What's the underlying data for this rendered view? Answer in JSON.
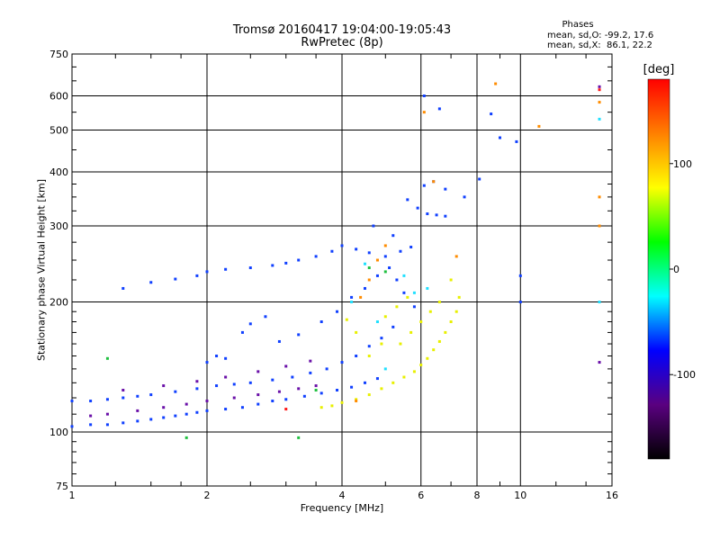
{
  "header": {
    "title_line1": "Tromsø 20160417 19:04:00-19:05:43",
    "title_line2": "RwPretec (8p)",
    "info_title": "Phases",
    "info_line1": "mean, sd,O: -99.2, 17.6",
    "info_line2": "mean, sd,X:  86.1, 22.2"
  },
  "chart_data": {
    "type": "scatter",
    "xlabel": "Frequency [MHz]",
    "ylabel": "Stationary phase Virtual Height [km]",
    "xscale": "log",
    "yscale": "log",
    "xlim": [
      1,
      16
    ],
    "ylim": [
      75,
      750
    ],
    "x_ticks": [
      1,
      2,
      4,
      6,
      8,
      10,
      16
    ],
    "y_ticks": [
      75,
      100,
      200,
      300,
      400,
      500,
      600,
      750
    ],
    "grid": true,
    "colorbar": {
      "label": "[deg]",
      "range": [
        -180,
        180
      ],
      "ticks": [
        100,
        0,
        -100
      ],
      "colormap": [
        "#000000",
        "#5a0080",
        "#0000ff",
        "#00ffff",
        "#00ff00",
        "#ffff00",
        "#ff8000",
        "#ff0000"
      ]
    },
    "series": [
      {
        "color": "#1040ff",
        "points": [
          [
            1.0,
            103
          ],
          [
            1.1,
            104
          ],
          [
            1.2,
            104
          ],
          [
            1.3,
            105
          ],
          [
            1.4,
            106
          ],
          [
            1.5,
            107
          ],
          [
            1.6,
            108
          ],
          [
            1.7,
            109
          ],
          [
            1.8,
            110
          ],
          [
            1.9,
            111
          ],
          [
            2.0,
            112
          ],
          [
            2.2,
            113
          ],
          [
            2.4,
            114
          ],
          [
            2.6,
            116
          ],
          [
            2.8,
            118
          ],
          [
            3.0,
            119
          ],
          [
            3.3,
            121
          ],
          [
            3.6,
            123
          ],
          [
            3.9,
            125
          ],
          [
            4.2,
            127
          ],
          [
            4.5,
            130
          ],
          [
            4.8,
            133
          ],
          [
            1.0,
            118
          ],
          [
            1.1,
            118
          ],
          [
            1.2,
            119
          ],
          [
            1.3,
            120
          ],
          [
            1.4,
            121
          ],
          [
            1.5,
            122
          ],
          [
            1.7,
            124
          ],
          [
            1.9,
            126
          ],
          [
            2.1,
            128
          ],
          [
            2.3,
            129
          ],
          [
            2.5,
            130
          ],
          [
            2.8,
            132
          ],
          [
            3.1,
            134
          ],
          [
            3.4,
            137
          ],
          [
            3.7,
            140
          ],
          [
            4.0,
            145
          ],
          [
            4.3,
            150
          ],
          [
            4.6,
            158
          ],
          [
            4.9,
            165
          ],
          [
            5.2,
            175
          ],
          [
            2.0,
            145
          ],
          [
            2.1,
            150
          ],
          [
            2.2,
            148
          ],
          [
            2.4,
            170
          ],
          [
            2.5,
            178
          ],
          [
            2.7,
            185
          ],
          [
            2.9,
            162
          ],
          [
            3.2,
            168
          ],
          [
            3.6,
            180
          ],
          [
            3.9,
            190
          ],
          [
            4.2,
            205
          ],
          [
            4.5,
            215
          ],
          [
            4.8,
            230
          ],
          [
            5.1,
            240
          ],
          [
            5.3,
            225
          ],
          [
            5.5,
            210
          ],
          [
            5.8,
            195
          ],
          [
            1.3,
            215
          ],
          [
            1.5,
            222
          ],
          [
            1.7,
            226
          ],
          [
            1.9,
            230
          ],
          [
            2.0,
            235
          ],
          [
            2.2,
            238
          ],
          [
            2.5,
            240
          ],
          [
            2.8,
            243
          ],
          [
            3.0,
            246
          ],
          [
            3.2,
            250
          ],
          [
            3.5,
            255
          ],
          [
            3.8,
            262
          ],
          [
            4.0,
            270
          ],
          [
            4.3,
            265
          ],
          [
            4.6,
            260
          ],
          [
            5.0,
            255
          ],
          [
            5.4,
            262
          ],
          [
            5.7,
            268
          ],
          [
            6.2,
            320
          ],
          [
            6.5,
            318
          ],
          [
            6.8,
            316
          ],
          [
            5.6,
            345
          ],
          [
            5.9,
            330
          ],
          [
            6.1,
            372
          ],
          [
            6.4,
            380
          ],
          [
            6.8,
            365
          ],
          [
            4.7,
            300
          ],
          [
            5.2,
            285
          ],
          [
            7.5,
            350
          ],
          [
            8.1,
            385
          ],
          [
            9.0,
            480
          ],
          [
            9.8,
            470
          ],
          [
            8.6,
            545
          ],
          [
            6.6,
            560
          ],
          [
            6.1,
            600
          ],
          [
            10.0,
            230
          ],
          [
            10.0,
            200
          ]
        ]
      },
      {
        "color": "#6a10a8",
        "points": [
          [
            1.1,
            109
          ],
          [
            1.2,
            110
          ],
          [
            1.4,
            112
          ],
          [
            1.6,
            114
          ],
          [
            1.8,
            116
          ],
          [
            2.0,
            118
          ],
          [
            2.3,
            120
          ],
          [
            2.6,
            122
          ],
          [
            2.9,
            124
          ],
          [
            3.2,
            126
          ],
          [
            3.5,
            128
          ],
          [
            1.3,
            125
          ],
          [
            1.6,
            128
          ],
          [
            1.9,
            131
          ],
          [
            2.2,
            134
          ],
          [
            2.6,
            138
          ],
          [
            3.0,
            142
          ],
          [
            3.4,
            146
          ],
          [
            15.0,
            145
          ],
          [
            15.0,
            630
          ]
        ]
      },
      {
        "color": "#e8f000",
        "points": [
          [
            3.6,
            114
          ],
          [
            3.8,
            115
          ],
          [
            4.0,
            117
          ],
          [
            4.3,
            119
          ],
          [
            4.6,
            122
          ],
          [
            4.9,
            126
          ],
          [
            5.2,
            130
          ],
          [
            5.5,
            134
          ],
          [
            5.8,
            138
          ],
          [
            6.0,
            143
          ],
          [
            6.2,
            148
          ],
          [
            6.4,
            155
          ],
          [
            6.6,
            162
          ],
          [
            6.8,
            170
          ],
          [
            7.0,
            180
          ],
          [
            7.2,
            190
          ],
          [
            5.4,
            160
          ],
          [
            5.7,
            170
          ],
          [
            6.0,
            180
          ],
          [
            6.3,
            190
          ],
          [
            6.6,
            200
          ],
          [
            5.0,
            185
          ],
          [
            5.3,
            195
          ],
          [
            5.6,
            205
          ],
          [
            4.6,
            150
          ],
          [
            4.9,
            160
          ],
          [
            4.3,
            170
          ],
          [
            4.1,
            182
          ],
          [
            7.3,
            205
          ],
          [
            7.0,
            225
          ]
        ]
      },
      {
        "color": "#ff8c00",
        "points": [
          [
            4.4,
            205
          ],
          [
            4.6,
            225
          ],
          [
            4.8,
            250
          ],
          [
            5.0,
            270
          ],
          [
            6.4,
            380
          ],
          [
            6.1,
            550
          ],
          [
            8.8,
            640
          ],
          [
            11.0,
            510
          ],
          [
            15.0,
            580
          ],
          [
            15.0,
            350
          ],
          [
            15.0,
            300
          ],
          [
            7.2,
            255
          ],
          [
            4.3,
            118
          ]
        ]
      },
      {
        "color": "#20e0ff",
        "points": [
          [
            4.2,
            200
          ],
          [
            4.5,
            245
          ],
          [
            4.8,
            180
          ],
          [
            5.5,
            230
          ],
          [
            6.2,
            215
          ],
          [
            5.0,
            140
          ],
          [
            15.0,
            530
          ],
          [
            15.0,
            200
          ],
          [
            5.8,
            210
          ]
        ]
      },
      {
        "color": "#20c040",
        "points": [
          [
            1.8,
            97
          ],
          [
            1.2,
            148
          ],
          [
            3.2,
            97
          ],
          [
            5.0,
            235
          ],
          [
            4.6,
            240
          ],
          [
            3.5,
            125
          ]
        ]
      },
      {
        "color": "#ff1a1a",
        "points": [
          [
            3.0,
            113
          ],
          [
            15.0,
            620
          ]
        ]
      }
    ]
  }
}
